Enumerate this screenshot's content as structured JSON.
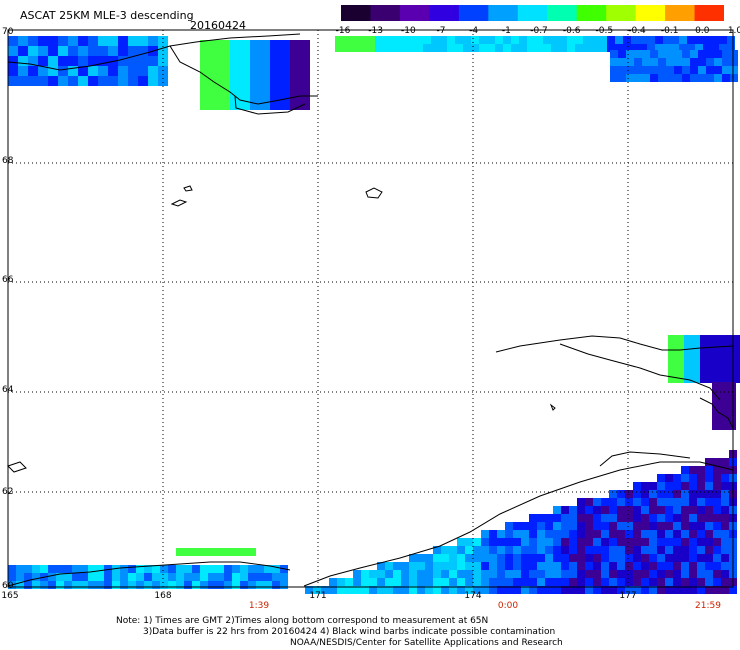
{
  "title": "ASCAT 25KM MLE-3 descending",
  "date": "20160424",
  "color_scale": {
    "labels": [
      "-16",
      "-13",
      "-10",
      "-7",
      "-4",
      "-1",
      "-0.7",
      "-0.6",
      "-0.5",
      "-0.4",
      "-0.1",
      "0.0",
      "1.0"
    ],
    "colors": [
      "#1a0030",
      "#3a0070",
      "#5a00b0",
      "#3000e0",
      "#0040ff",
      "#00a0ff",
      "#00e0ff",
      "#00ffb0",
      "#40ff00",
      "#a0ff00",
      "#ffff00",
      "#ffa000",
      "#ff3000"
    ]
  },
  "latitude_labels": [
    "70",
    "68",
    "66",
    "64",
    "62",
    "60"
  ],
  "longitude_labels": [
    "165",
    "168",
    "171",
    "174",
    "177"
  ],
  "time_labels": [
    "1:39",
    "0:00",
    "21:59"
  ],
  "notes": [
    "Note: 1) Times are GMT 2)Times along bottom correspond to measurement at 65N",
    "3)Data buffer is 22 hrs from 20160424 4) Black wind barbs indicate possible contamination",
    "NOAA/NESDIS/Center for Satellite Applications and Research"
  ],
  "colors": {
    "time_label": "#cc2200",
    "grid": "#000000",
    "coast": "#000000"
  }
}
